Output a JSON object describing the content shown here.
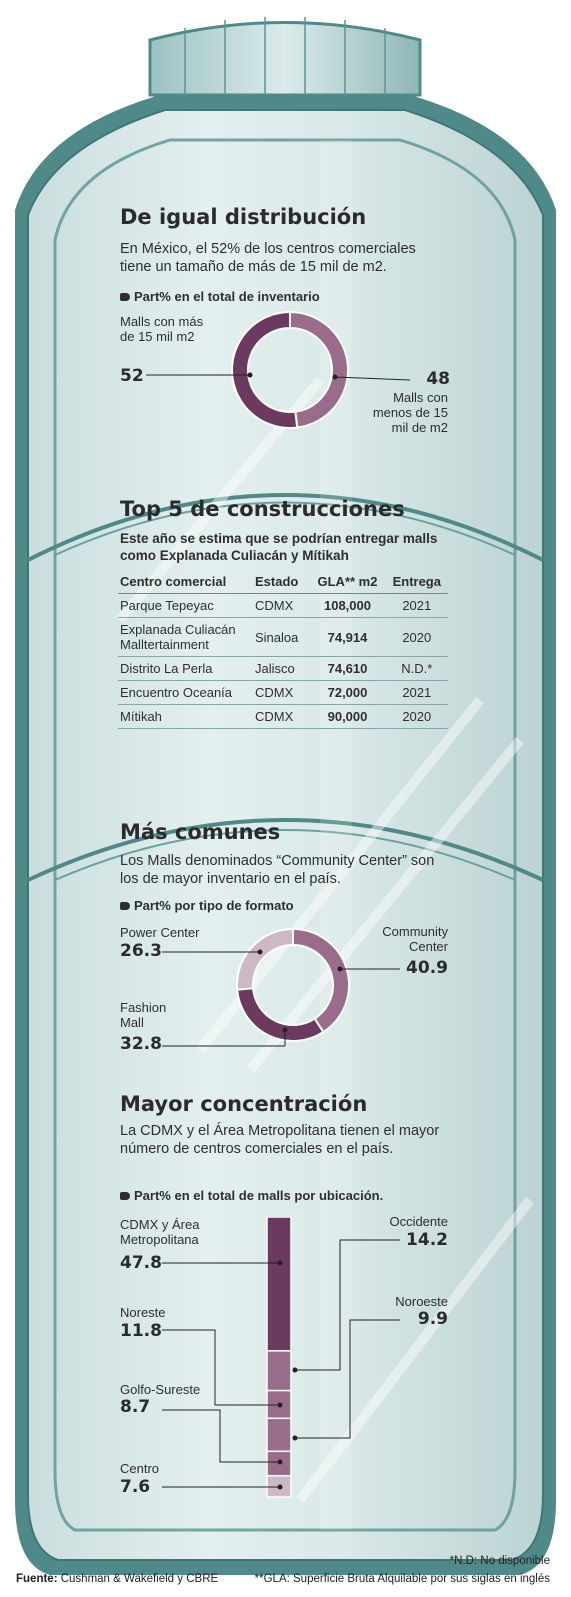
{
  "section1": {
    "title": "De igual distribución",
    "text": "En México, el 52% de los centros comerciales tiene un tamaño de más de 15 mil de m2.",
    "subtitle": "Part% en el total de inventario",
    "label_a": "Malls con más de 15 mil m2",
    "value_a": "52",
    "label_b": "Malls con menos de 15 mil de m2",
    "value_b": "48"
  },
  "section2": {
    "title": "Top 5 de construcciones",
    "text": "Este año se estima que se podrían entregar malls como Explanada Culiacán y Mítikah",
    "headers": [
      "Centro comercial",
      "Estado",
      "GLA** m2",
      "Entrega"
    ],
    "rows": [
      [
        "Parque Tepeyac",
        "CDMX",
        "108,000",
        "2021"
      ],
      [
        "Explanada Culiacán Malltertainment",
        "Sinaloa",
        "74,914",
        "2020"
      ],
      [
        "Distrito La Perla",
        "Jalisco",
        "74,610",
        "N.D.*"
      ],
      [
        "Encuentro Oceanía",
        "CDMX",
        "72,000",
        "2021"
      ],
      [
        "Mítikah",
        "CDMX",
        "90,000",
        "2020"
      ]
    ]
  },
  "section3": {
    "title": "Más comunes",
    "text": "Los Malls denominados “Community Center” son los de mayor inventario en el país.",
    "subtitle": "Part% por tipo de formato",
    "label_power": "Power Center",
    "value_power": "26.3",
    "label_community": "Community Center",
    "value_community": "40.9",
    "label_fashion": "Fashion Mall",
    "value_fashion": "32.8"
  },
  "section4": {
    "title": "Mayor concentración",
    "text": "La CDMX y el Área Metropolitana tienen el mayor número de centros comerciales en el país.",
    "subtitle": "Part% en el total de malls por ubicación.",
    "labels": {
      "cdmx": "CDMX y Área Metropolitana",
      "occidente": "Occidente",
      "noroeste": "Noroeste",
      "noreste": "Noreste",
      "golfo": "Golfo-Sureste",
      "centro": "Centro"
    },
    "values": {
      "cdmx": "47.8",
      "occidente": "14.2",
      "noroeste": "9.9",
      "noreste": "11.8",
      "golfo": "8.7",
      "centro": "7.6"
    }
  },
  "footer": {
    "source_label": "Fuente:",
    "source": "Cushman & Wakefield y CBRE",
    "note1": "*N.D: No disponible",
    "note2": "**GLA: Superficie Bruta Alquilable por sus siglas en inglés"
  },
  "colors": {
    "dark": "#6b3a5e",
    "medium": "#9a6c8c",
    "light": "#cdb8c5",
    "frame": "#4f8a89",
    "glass": "#d5e6e6"
  },
  "chart_data": [
    {
      "type": "pie",
      "title": "De igual distribución",
      "subtitle": "Part% en el total de inventario",
      "categories": [
        "Malls con más de 15 mil m2",
        "Malls con menos de 15 mil de m2"
      ],
      "values": [
        52,
        48
      ],
      "colors": [
        "#6b3a5e",
        "#9a6c8c"
      ]
    },
    {
      "type": "table",
      "title": "Top 5 de construcciones",
      "columns": [
        "Centro comercial",
        "Estado",
        "GLA** m2",
        "Entrega"
      ],
      "rows": [
        [
          "Parque Tepeyac",
          "CDMX",
          108000,
          "2021"
        ],
        [
          "Explanada Culiacán Malltertainment",
          "Sinaloa",
          74914,
          "2020"
        ],
        [
          "Distrito La Perla",
          "Jalisco",
          74610,
          "N.D.*"
        ],
        [
          "Encuentro Oceanía",
          "CDMX",
          72000,
          "2021"
        ],
        [
          "Mítikah",
          "CDMX",
          90000,
          "2020"
        ]
      ]
    },
    {
      "type": "pie",
      "title": "Más comunes",
      "subtitle": "Part% por tipo de formato",
      "categories": [
        "Community Center",
        "Fashion Mall",
        "Power Center"
      ],
      "values": [
        40.9,
        32.8,
        26.3
      ],
      "colors": [
        "#9a6c8c",
        "#6b3a5e",
        "#cdb8c5"
      ]
    },
    {
      "type": "bar",
      "stacked": true,
      "title": "Mayor concentración",
      "subtitle": "Part% en el total de malls por ubicación.",
      "categories": [
        "CDMX y Área Metropolitana",
        "Occidente",
        "Noroeste",
        "Noreste",
        "Golfo-Sureste",
        "Centro"
      ],
      "values": [
        47.8,
        14.2,
        9.9,
        11.8,
        8.7,
        7.6
      ],
      "colors": [
        "#6b3a5e",
        "#9a6c8c",
        "#9a6c8c",
        "#9a6c8c",
        "#9a6c8c",
        "#cdb8c5"
      ]
    }
  ]
}
